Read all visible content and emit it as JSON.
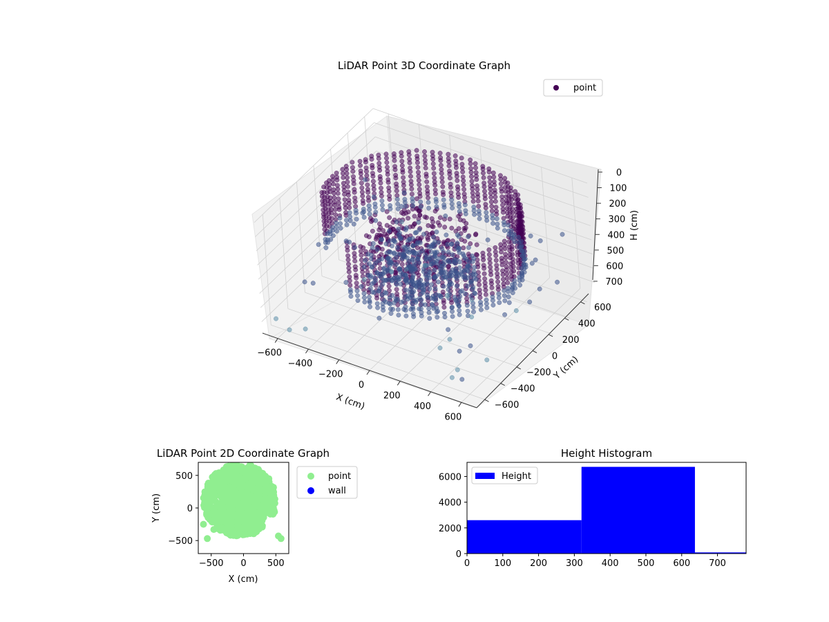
{
  "colors": {
    "point_dark": "#440154",
    "point_mid": "#3b528b",
    "point_teal": "#5b8ea8",
    "light_green": "#90ee90",
    "blue": "#0000ff",
    "pane": "#f2f2f2",
    "grid": "#d0d0d0"
  },
  "chart_data": [
    {
      "type": "scatter",
      "subtype": "scatter3d",
      "title": "LiDAR Point 3D Coordinate Graph",
      "xlabel": "X (cm)",
      "ylabel": "Y (cm)",
      "zlabel": "H (cm)",
      "xlim": [
        -700,
        700
      ],
      "ylim": [
        -700,
        700
      ],
      "zlim": [
        780,
        0
      ],
      "x_ticks": [
        "−600",
        "−400",
        "−200",
        "0",
        "200",
        "400",
        "600"
      ],
      "y_ticks": [
        "−600",
        "−400",
        "−200",
        "0",
        "200",
        "400",
        "600"
      ],
      "z_ticks": [
        "0",
        "100",
        "200",
        "300",
        "400",
        "500",
        "600",
        "700"
      ],
      "legend": {
        "position": "upper-right",
        "entries": [
          "point"
        ]
      },
      "grid": true,
      "colormap": "viridis-like (purple to teal)",
      "description_values": {
        "ring_radius": 560,
        "ring_height_range": [
          0,
          420
        ],
        "dense_inner_blob_radius": 260
      }
    },
    {
      "type": "scatter",
      "title": "LiDAR Point 2D Coordinate Graph",
      "xlabel": "X (cm)",
      "ylabel": "Y (cm)",
      "xlim": [
        -700,
        700
      ],
      "ylim": [
        -700,
        700
      ],
      "x_ticks": [
        "−500",
        "0",
        "500"
      ],
      "y_ticks": [
        "500",
        "0",
        "−500"
      ],
      "legend": {
        "position": "outside-right",
        "entries": [
          "point",
          "wall"
        ]
      },
      "series": [
        {
          "name": "point",
          "color": "#90ee90"
        },
        {
          "name": "wall",
          "color": "#0000ff"
        }
      ]
    },
    {
      "type": "bar",
      "subtype": "histogram",
      "title": "Height Histogram",
      "xlim": [
        0,
        780
      ],
      "ylim": [
        0,
        7100
      ],
      "x_ticks": [
        "0",
        "100",
        "200",
        "300",
        "400",
        "500",
        "600",
        "700"
      ],
      "y_ticks": [
        "0",
        "2000",
        "4000",
        "6000"
      ],
      "legend": {
        "position": "upper-left",
        "entries": [
          "Height"
        ]
      },
      "bins": [
        {
          "start": 0,
          "end": 320,
          "count": 2600
        },
        {
          "start": 320,
          "end": 637,
          "count": 6750
        },
        {
          "start": 637,
          "end": 780,
          "count": 90
        }
      ],
      "color": "#0000ff"
    }
  ]
}
